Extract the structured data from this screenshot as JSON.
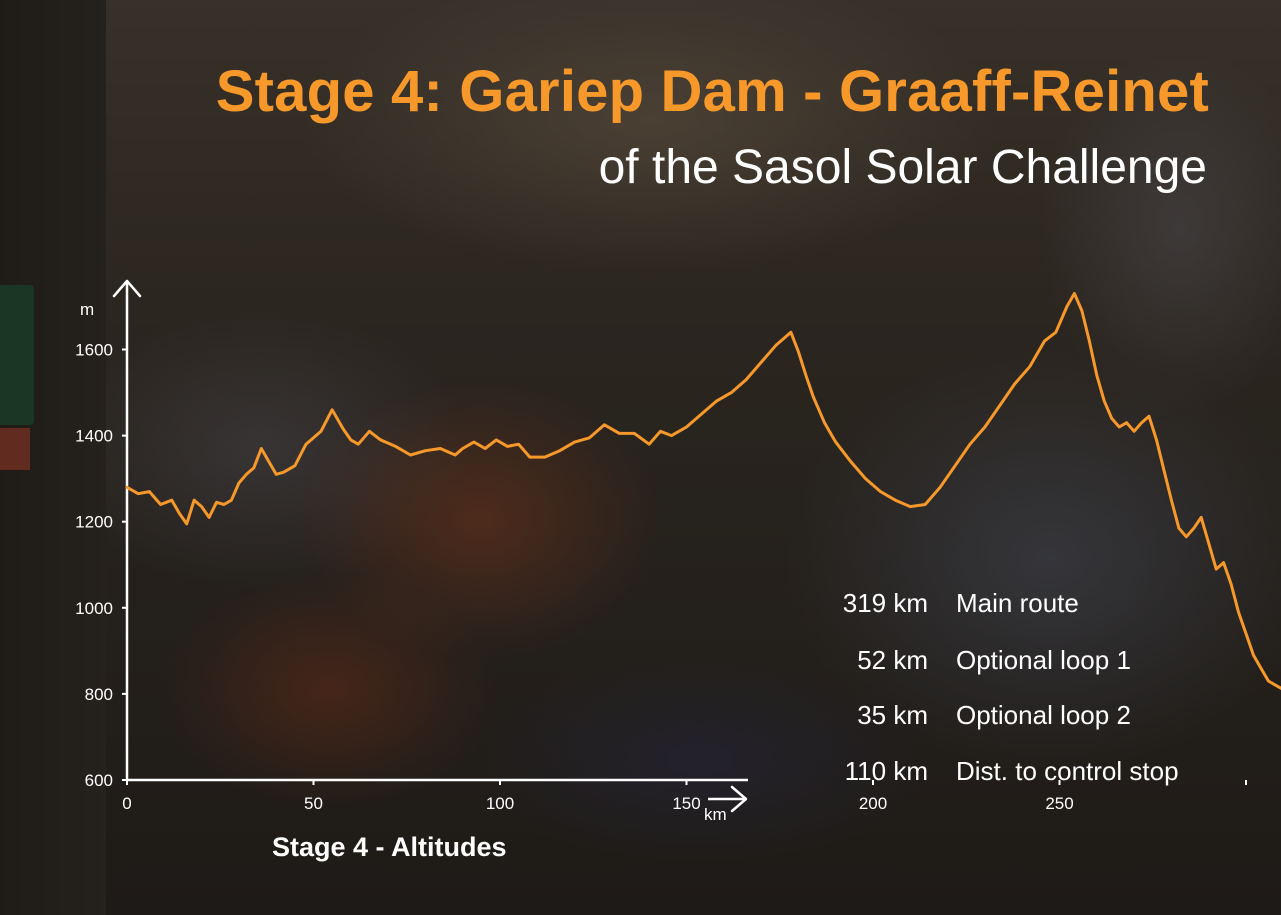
{
  "title": "Stage 4: Gariep Dam - Graaff-Reinet",
  "subtitle": "of the Sasol Solar Challenge",
  "caption": "Stage 4 - Altitudes",
  "colors": {
    "accent": "#f7982a",
    "text": "#ffffff"
  },
  "stats": [
    {
      "distance": "319 km",
      "label": "Main route"
    },
    {
      "distance": "52 km",
      "label": "Optional loop 1"
    },
    {
      "distance": "35  km",
      "label": "Optional loop 2"
    },
    {
      "distance": "110 km",
      "label": "Dist. to control stop"
    }
  ],
  "chart_data": {
    "type": "line",
    "title": "Stage 4 - Altitudes",
    "xlabel": "km",
    "ylabel": "m",
    "xlim": [
      0,
      335
    ],
    "ylim": [
      600,
      1700
    ],
    "x_ticks": [
      0,
      50,
      100,
      150,
      200,
      250,
      300
    ],
    "x_tick_labels": [
      "0",
      "50",
      "100",
      "150",
      "200",
      "250",
      ""
    ],
    "y_ticks": [
      600,
      800,
      1000,
      1200,
      1400,
      1600
    ],
    "y_tick_labels": [
      "600",
      "800",
      "1000",
      "1200",
      "1400",
      "1600"
    ],
    "grid": false,
    "line_color": "#f7982a",
    "series": [
      {
        "x": [
          0,
          3,
          6,
          9,
          12,
          14,
          16,
          18,
          20,
          22,
          24,
          26,
          28,
          30,
          32,
          34,
          36,
          38,
          40,
          42,
          45,
          48,
          52,
          55,
          58,
          60,
          62,
          65,
          68,
          72,
          76,
          80,
          84,
          88,
          90,
          93,
          96,
          99,
          102,
          105,
          108,
          112,
          116,
          120,
          124,
          128,
          132,
          136,
          140,
          143,
          146,
          150,
          154,
          158,
          162,
          166,
          170,
          174,
          178,
          180,
          182,
          184,
          187,
          190,
          194,
          198,
          202,
          206,
          210,
          214,
          218,
          222,
          226,
          230,
          234,
          238,
          242,
          246,
          249,
          252,
          254,
          256,
          258,
          260,
          262,
          264,
          266,
          268,
          270,
          272,
          274,
          276,
          278,
          280,
          282,
          284,
          286,
          288,
          290,
          292,
          294,
          296,
          298,
          300,
          302,
          304,
          306,
          308,
          310,
          312,
          314,
          316,
          318
        ],
        "y": [
          1280,
          1265,
          1270,
          1240,
          1250,
          1220,
          1195,
          1250,
          1235,
          1210,
          1245,
          1240,
          1250,
          1290,
          1310,
          1325,
          1370,
          1340,
          1310,
          1315,
          1330,
          1380,
          1410,
          1460,
          1415,
          1390,
          1380,
          1410,
          1390,
          1375,
          1355,
          1365,
          1370,
          1355,
          1370,
          1385,
          1370,
          1390,
          1375,
          1380,
          1350,
          1350,
          1365,
          1385,
          1395,
          1425,
          1405,
          1405,
          1380,
          1410,
          1400,
          1420,
          1450,
          1480,
          1500,
          1530,
          1570,
          1610,
          1640,
          1595,
          1540,
          1490,
          1430,
          1385,
          1340,
          1300,
          1270,
          1250,
          1235,
          1240,
          1280,
          1330,
          1380,
          1420,
          1470,
          1520,
          1560,
          1620,
          1640,
          1700,
          1730,
          1690,
          1620,
          1540,
          1480,
          1440,
          1420,
          1430,
          1410,
          1430,
          1445,
          1390,
          1320,
          1250,
          1185,
          1165,
          1185,
          1210,
          1150,
          1090,
          1105,
          1055,
          990,
          940,
          890,
          860,
          830,
          820,
          810,
          808,
          800,
          790,
          760
        ]
      }
    ]
  }
}
